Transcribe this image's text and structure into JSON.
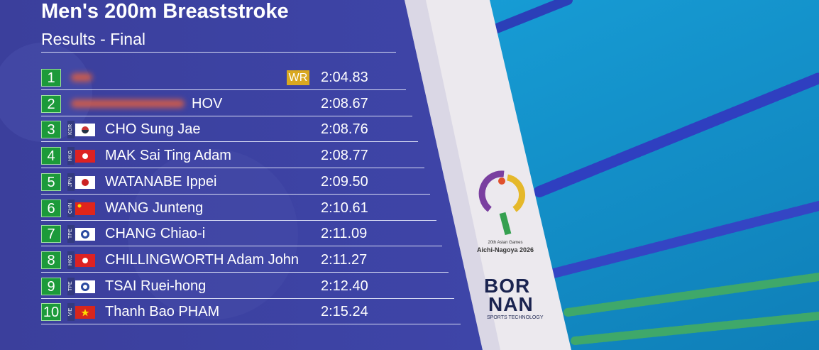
{
  "header": {
    "title": "Men's 200m Breaststroke",
    "subtitle": "Results - Final"
  },
  "results": [
    {
      "rank": "1",
      "record": "WR",
      "time": "2:04.83"
    },
    {
      "rank": "2",
      "name": "HOV",
      "time": "2:08.67"
    },
    {
      "rank": "3",
      "country": "KOR",
      "name": "CHO Sung Jae",
      "time": "2:08.76"
    },
    {
      "rank": "4",
      "country": "HKG",
      "name": "MAK Sai Ting Adam",
      "time": "2:08.77"
    },
    {
      "rank": "5",
      "country": "JPN",
      "name": "WATANABE Ippei",
      "time": "2:09.50"
    },
    {
      "rank": "6",
      "country": "CHN",
      "name": "WANG Junteng",
      "time": "2:10.61"
    },
    {
      "rank": "7",
      "country": "TPE",
      "name": "CHANG Chiao-i",
      "time": "2:11.09"
    },
    {
      "rank": "8",
      "country": "HKG",
      "name": "CHILLINGWORTH Adam John",
      "time": "2:11.27"
    },
    {
      "rank": "9",
      "country": "TPE",
      "name": "TSAI Ruei-hong",
      "time": "2:12.40"
    },
    {
      "rank": "10",
      "country": "VIE",
      "name": "Thanh Bao PHAM",
      "time": "2:15.24"
    }
  ],
  "logos": {
    "games_edition": "20th Asian Games",
    "games_city": "Aichi-Nagoya 2026",
    "sponsor_line1": "BOR",
    "sponsor_line2": "NAN",
    "sponsor_tagline": "SPORTS TECHNOLOGY"
  }
}
